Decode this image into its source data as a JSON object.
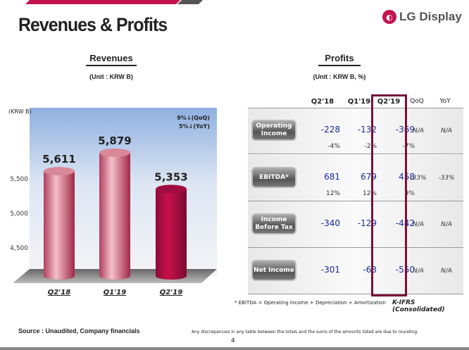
{
  "title": "Revenues & Profits",
  "logo": {
    "text": "LG Display",
    "icon": "lg-logo-icon"
  },
  "revenues": {
    "heading": "Revenues",
    "unit": "(Unit : KRW B)",
    "axis_unit": "(KRW B)",
    "qoq": "9%↓(QoQ)",
    "yoy": "5%↓(YoY)"
  },
  "chart_data": {
    "type": "bar",
    "categories": [
      "Q2'18",
      "Q1'19",
      "Q2'19"
    ],
    "values": [
      5611,
      5879,
      5353
    ],
    "value_labels": [
      "5,611",
      "5,879",
      "5,353"
    ],
    "yticks": [
      "4,500",
      "5,000",
      "5,500"
    ],
    "ytick_values": [
      4500,
      5000,
      5500
    ],
    "ylabel": "(KRW B)",
    "colors": [
      "#e9a0ae",
      "#e9a0ae",
      "#b0104a"
    ]
  },
  "profits": {
    "heading": "Profits",
    "unit": "(Unit : KRW B, %)",
    "columns": [
      "Q2'18",
      "Q1'19",
      "Q2'19",
      "QoQ",
      "YoY"
    ],
    "rows": [
      {
        "label": "Operating Income",
        "values": [
          "-228",
          "-132",
          "-369"
        ],
        "pcts": [
          "-4%",
          "-2%",
          "-7%"
        ],
        "qoq": "N/A",
        "yoy": "N/A"
      },
      {
        "label": "EBITDA*",
        "values": [
          "681",
          "679",
          "458"
        ],
        "pcts": [
          "12%",
          "12%",
          "9%"
        ],
        "qoq": "-33%",
        "yoy": "-33%"
      },
      {
        "label": "Income Before Tax",
        "values": [
          "-340",
          "-129",
          "-442"
        ],
        "pcts": [
          "",
          "",
          ""
        ],
        "qoq": "N/A",
        "yoy": "N/A"
      },
      {
        "label": "Net Income",
        "values": [
          "-301",
          "-63",
          "-550"
        ],
        "pcts": [
          "",
          "",
          ""
        ],
        "qoq": "N/A",
        "yoy": "N/A"
      }
    ],
    "footnote": "* EBITDA = Operating Income + Depreciation + Amortization",
    "standard": "K-IFRS (Consolidated)"
  },
  "footer": {
    "source": "Source : Unaudited, Company financials",
    "disclaimer": "Any discrepancies in any table between the totals and the sums of the amounts listed are due to rounding.",
    "page": "4"
  },
  "colors": {
    "accent": "#c4124f",
    "highlight": "#7a1038",
    "value_text": "#1a2a9a"
  }
}
